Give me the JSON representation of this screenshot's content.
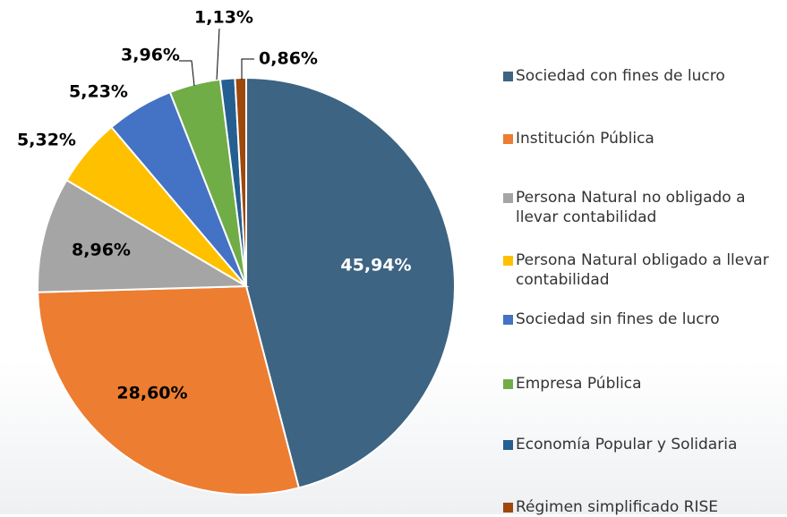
{
  "chart_data": {
    "type": "pie",
    "categories": [
      "Sociedad con fines de lucro",
      "Institución Pública",
      "Persona Natural no obligado a llevar contabilidad",
      "Persona Natural obligado a llevar contabilidad",
      "Sociedad sin fines de lucro",
      "Empresa Pública",
      "Economía Popular y Solidaria",
      "Régimen simplificado RISE"
    ],
    "values": [
      45.94,
      28.6,
      8.96,
      5.32,
      5.23,
      3.96,
      1.13,
      0.86
    ],
    "value_labels": [
      "45,94%",
      "28,60%",
      "8,96%",
      "5,32%",
      "5,23%",
      "3,96%",
      "1,13%",
      "0,86%"
    ],
    "colors": [
      "#3d6482",
      "#ed7d31",
      "#a5a5a5",
      "#ffc000",
      "#4472c4",
      "#70ad47",
      "#255e91",
      "#9e480e"
    ],
    "legend": "right"
  }
}
